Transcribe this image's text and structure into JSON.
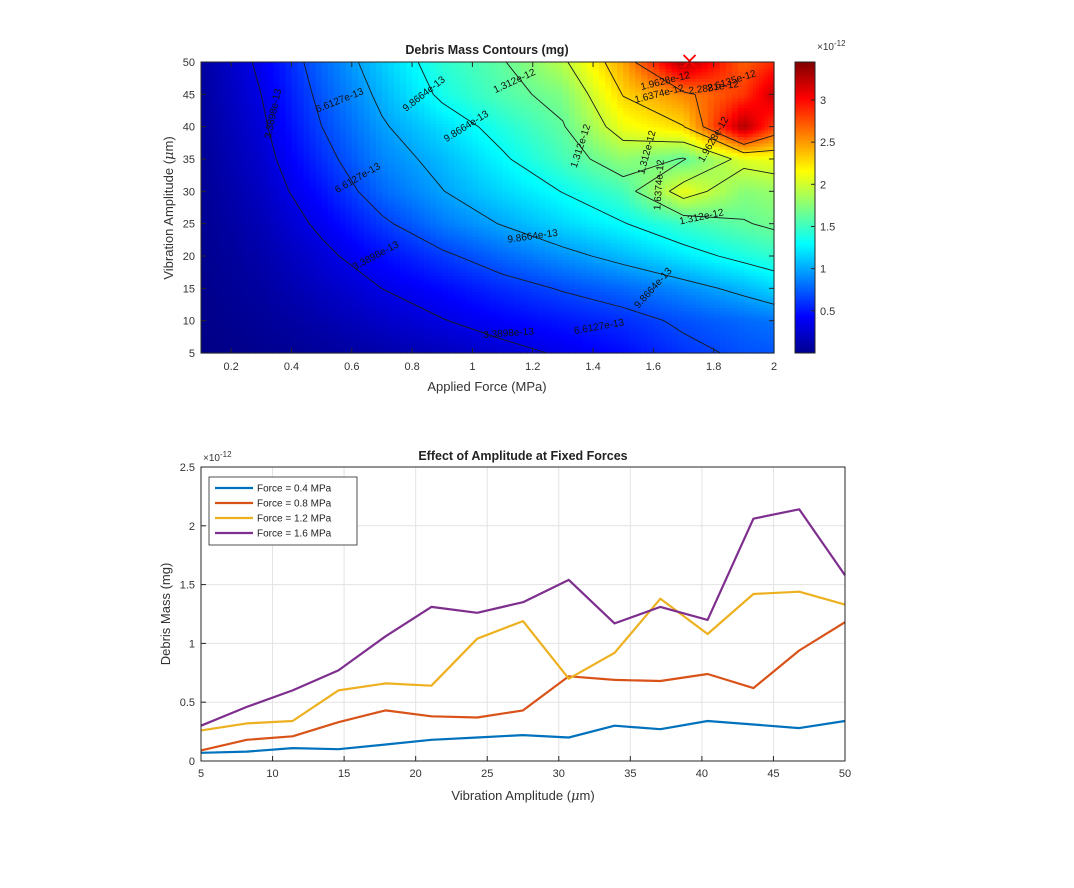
{
  "chart_data": [
    {
      "type": "heatmap",
      "title": "Debris Mass Contours (mg)",
      "xlabel": "Applied Force (MPa)",
      "ylabel": "Vibration Amplitude (μm)",
      "xlim": [
        0.1,
        2.0
      ],
      "ylim": [
        5,
        50
      ],
      "xticks": [
        "0.2",
        "0.4",
        "0.6",
        "0.8",
        "1",
        "1.2",
        "1.4",
        "1.6",
        "1.8",
        "2"
      ],
      "yticks": [
        "5",
        "10",
        "15",
        "20",
        "25",
        "30",
        "35",
        "40",
        "45",
        "50"
      ],
      "colorbar": {
        "exponent_label": "×10-12",
        "ticks": [
          "0.5",
          "1",
          "1.5",
          "2",
          "2.5",
          "3"
        ],
        "min": 0.0,
        "max": 3.45,
        "colormap": "jet"
      },
      "contour_levels": [
        "3.3898e-13",
        "6.6127e-13",
        "9.8664e-13",
        "1.312e-12",
        "1.6374e-12",
        "1.9628e-12",
        "2.2881e-12",
        "2.6135e-12"
      ],
      "marker": {
        "x": 1.72,
        "y": 50,
        "symbol": "x",
        "color": "#ff0000"
      },
      "grid_x": [
        0.1,
        0.3,
        0.5,
        0.7,
        0.9,
        1.1,
        1.3,
        1.5,
        1.7,
        1.9,
        2.0
      ],
      "grid_y": [
        5,
        10,
        15,
        20,
        25,
        30,
        35,
        40,
        45,
        50
      ],
      "z": [
        [
          0.02,
          0.05,
          0.09,
          0.14,
          0.2,
          0.28,
          0.36,
          0.46,
          0.6,
          0.7,
          0.72
        ],
        [
          0.03,
          0.08,
          0.15,
          0.24,
          0.33,
          0.42,
          0.5,
          0.58,
          0.7,
          0.78,
          0.82
        ],
        [
          0.04,
          0.11,
          0.22,
          0.34,
          0.45,
          0.57,
          0.68,
          0.78,
          0.9,
          1.05,
          1.15
        ],
        [
          0.05,
          0.14,
          0.29,
          0.46,
          0.62,
          0.78,
          0.92,
          1.06,
          1.22,
          1.38,
          1.45
        ],
        [
          0.06,
          0.18,
          0.38,
          0.62,
          0.84,
          1.0,
          1.16,
          1.3,
          1.48,
          1.62,
          1.68
        ],
        [
          0.07,
          0.22,
          0.48,
          0.78,
          0.98,
          1.16,
          1.32,
          1.52,
          2.1,
          1.75,
          1.8
        ],
        [
          0.08,
          0.26,
          0.58,
          0.88,
          1.06,
          1.28,
          1.52,
          1.78,
          1.62,
          2.05,
          2.1
        ],
        [
          0.09,
          0.3,
          0.66,
          0.96,
          1.18,
          1.4,
          1.62,
          2.1,
          2.28,
          3.3,
          2.8
        ],
        [
          0.1,
          0.34,
          0.72,
          1.04,
          1.36,
          1.56,
          1.72,
          2.3,
          2.56,
          2.84,
          3.2
        ],
        [
          0.11,
          0.38,
          0.78,
          1.12,
          1.44,
          1.62,
          1.92,
          2.45,
          3.3,
          2.7,
          2.9
        ]
      ]
    },
    {
      "type": "line",
      "title": "Effect of Amplitude at Fixed Forces",
      "xlabel": "Vibration Amplitude (μm)",
      "ylabel": "Debris Mass (mg)",
      "y_exponent_label": "×10-12",
      "xlim": [
        5,
        50
      ],
      "ylim": [
        0,
        2.5
      ],
      "xticks": [
        "5",
        "10",
        "15",
        "20",
        "25",
        "30",
        "35",
        "40",
        "45",
        "50"
      ],
      "yticks": [
        "0",
        "0.5",
        "1",
        "1.5",
        "2",
        "2.5"
      ],
      "grid": true,
      "legend_position": "top-left",
      "x": [
        5.0,
        8.2,
        11.4,
        14.6,
        17.9,
        21.1,
        24.3,
        27.5,
        30.7,
        33.9,
        37.1,
        40.4,
        43.6,
        46.8,
        50.0
      ],
      "series": [
        {
          "name": "Force = 0.4 MPa",
          "color": "#0072BD",
          "values": [
            0.07,
            0.08,
            0.11,
            0.1,
            0.14,
            0.18,
            0.2,
            0.22,
            0.2,
            0.3,
            0.27,
            0.34,
            0.31,
            0.28,
            0.34
          ]
        },
        {
          "name": "Force = 0.8 MPa",
          "color": "#D95319",
          "values": [
            0.09,
            0.18,
            0.21,
            0.33,
            0.43,
            0.38,
            0.37,
            0.43,
            0.72,
            0.69,
            0.68,
            0.74,
            0.62,
            0.94,
            1.18
          ]
        },
        {
          "name": "Force = 1.2 MPa",
          "color": "#EDB120",
          "values": [
            0.26,
            0.32,
            0.34,
            0.6,
            0.66,
            0.64,
            1.04,
            1.19,
            0.7,
            0.92,
            1.38,
            1.08,
            1.42,
            1.44,
            1.33
          ]
        },
        {
          "name": "Force = 1.6 MPa",
          "color": "#7E2F8E",
          "values": [
            0.3,
            0.46,
            0.6,
            0.77,
            1.06,
            1.31,
            1.26,
            1.35,
            1.54,
            1.17,
            1.31,
            1.2,
            2.06,
            2.14,
            1.58
          ]
        }
      ]
    }
  ]
}
